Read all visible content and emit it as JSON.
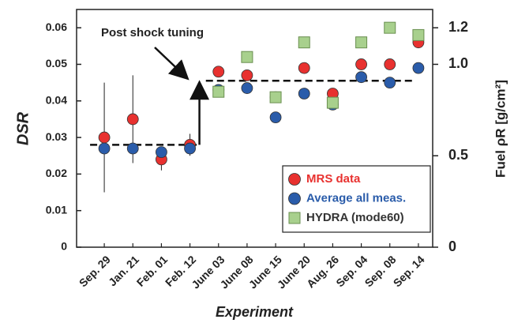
{
  "chart_data": {
    "type": "scatter",
    "categories": [
      "Sep. 29",
      "Jan. 21",
      "Feb. 01",
      "Feb. 12",
      "June 03",
      "June 08",
      "June 15",
      "June 20",
      "Aug. 26",
      "Sep. 04",
      "Sep. 08",
      "Sep. 14"
    ],
    "series": [
      {
        "name": "MRS data",
        "color": "#e8312f",
        "text_color": "#e8312f",
        "marker": "circle",
        "values": [
          0.03,
          0.035,
          0.024,
          0.028,
          0.048,
          0.047,
          0.041,
          0.049,
          0.042,
          0.05,
          0.05,
          0.056
        ],
        "errors": [
          0.015,
          0.012,
          0.003,
          0.003,
          null,
          null,
          null,
          null,
          null,
          null,
          null,
          null
        ]
      },
      {
        "name": "Average all meas.",
        "color": "#2a5caa",
        "text_color": "#2a5caa",
        "marker": "circle",
        "values": [
          0.027,
          0.027,
          0.026,
          0.027,
          0.043,
          0.0435,
          0.0355,
          0.042,
          0.039,
          0.0465,
          0.045,
          0.049
        ]
      },
      {
        "name": "HYDRA (mode60)",
        "color": "#a8d08d",
        "text_color": "#333333",
        "marker": "square",
        "axis": "y2",
        "values": [
          null,
          null,
          null,
          null,
          0.85,
          1.04,
          0.82,
          1.12,
          0.79,
          1.12,
          1.2,
          1.16
        ]
      }
    ],
    "x_label": "Experiment",
    "y_label": "DSR",
    "y2_label": "Fuel ρR [g/cm²]",
    "ylim": [
      0,
      0.065
    ],
    "yticks": [
      0,
      0.01,
      0.02,
      0.03,
      0.04,
      0.05,
      0.06
    ],
    "y2lim": [
      0,
      1.3
    ],
    "y2ticks": [
      0,
      0.5,
      {
        "value": 1,
        "label": "1.0"
      },
      1.2
    ],
    "reference_lines": [
      0.028,
      0.0455
    ],
    "annotation": "Post shock tuning",
    "legend": "lower right"
  }
}
